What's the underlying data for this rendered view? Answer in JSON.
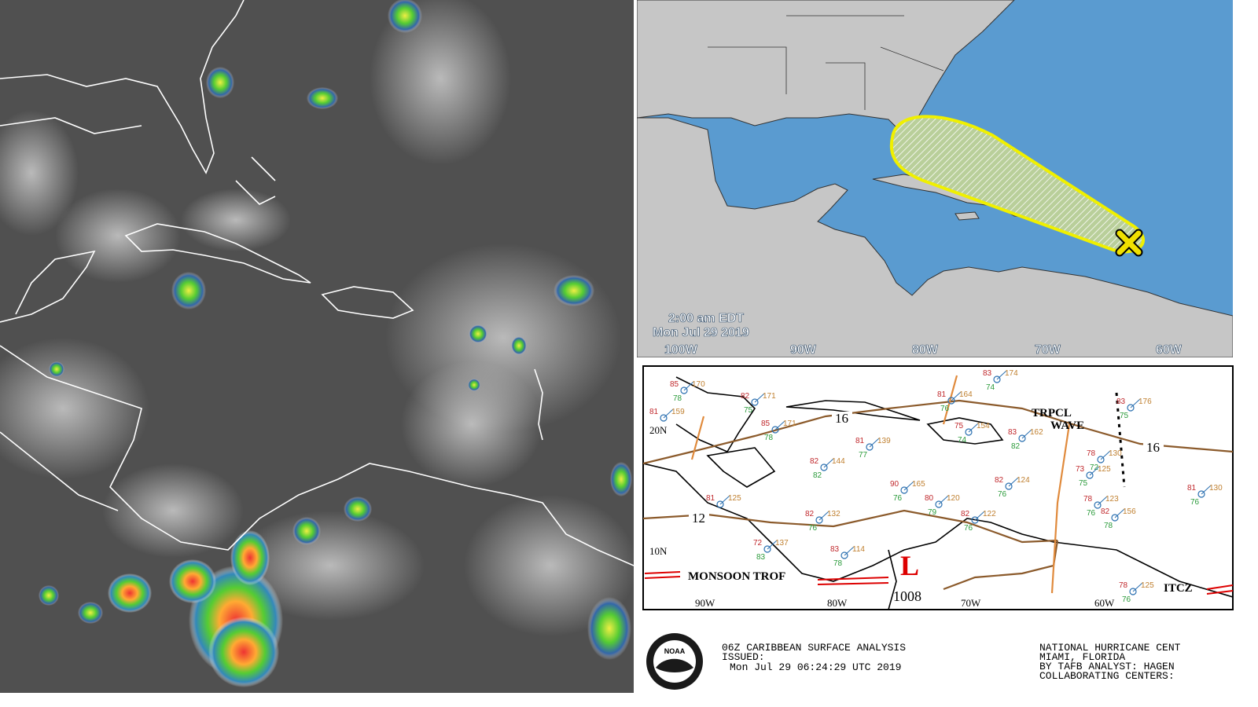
{
  "forecast_map": {
    "valid_time": "2:00 am EDT",
    "valid_date": "Mon Jul 29 2019",
    "longitude_labels": [
      "100W",
      "90W",
      "80W",
      "70W",
      "60W"
    ]
  },
  "surface_analysis": {
    "latitude_labels": [
      "20N",
      "10N"
    ],
    "longitude_labels": [
      "90W",
      "80W",
      "70W",
      "60W"
    ],
    "isobar_labels": [
      "16",
      "12",
      "16"
    ],
    "monsoon_trough": "MONSOON TROF",
    "tropical_wave": [
      "TRPCL",
      "WAVE"
    ],
    "itcz": "ITCZ",
    "low_pressure": {
      "symbol": "L",
      "pressure": "1008"
    },
    "stations": [
      {
        "temp": "85",
        "pressure": "170",
        "dewpoint": "78"
      },
      {
        "temp": "81",
        "pressure": "159"
      },
      {
        "temp": "82",
        "pressure": "171",
        "dewpoint": "75"
      },
      {
        "temp": "85",
        "pressure": "171",
        "dewpoint": "78"
      },
      {
        "temp": "82",
        "pressure": "144",
        "dewpoint": "82"
      },
      {
        "temp": "81",
        "pressure": "139",
        "dewpoint": "77"
      },
      {
        "temp": "81",
        "pressure": "164",
        "dewpoint": "76"
      },
      {
        "temp": "75",
        "pressure": "154",
        "dewpoint": "74"
      },
      {
        "temp": "83",
        "pressure": "162",
        "dewpoint": "82"
      },
      {
        "temp": "83",
        "pressure": "174",
        "dewpoint": "74"
      },
      {
        "temp": "83",
        "pressure": "176",
        "dewpoint": "75"
      },
      {
        "temp": "78",
        "pressure": "130",
        "dewpoint": "72"
      },
      {
        "temp": "73",
        "pressure": "125",
        "dewpoint": "75"
      },
      {
        "temp": "82",
        "pressure": "124",
        "dewpoint": "76"
      },
      {
        "temp": "90",
        "pressure": "165",
        "dewpoint": "76"
      },
      {
        "temp": "80",
        "pressure": "120",
        "dewpoint": "79"
      },
      {
        "temp": "82",
        "pressure": "122",
        "dewpoint": "76"
      },
      {
        "temp": "82",
        "pressure": "132",
        "dewpoint": "76"
      },
      {
        "temp": "78",
        "pressure": "123",
        "dewpoint": "76"
      },
      {
        "temp": "82",
        "pressure": "156",
        "dewpoint": "78"
      },
      {
        "temp": "81",
        "pressure": "130",
        "dewpoint": "76"
      },
      {
        "temp": "81",
        "pressure": "125"
      },
      {
        "temp": "72",
        "pressure": "137",
        "dewpoint": "83"
      },
      {
        "temp": "83",
        "pressure": "114",
        "dewpoint": "78"
      },
      {
        "temp": "78",
        "pressure": "125",
        "dewpoint": "76"
      }
    ]
  },
  "footer": {
    "logo": "NOAA",
    "title": "06Z CARIBBEAN SURFACE ANALYSIS",
    "issued_label": "ISSUED:",
    "issued": "Mon Jul 29 06:24:29 UTC 2019",
    "center": "NATIONAL HURRICANE CENT",
    "location": "MIAMI, FLORIDA",
    "analyst": "BY TAFB ANALYST: HAGEN",
    "collaborating": "COLLABORATING CENTERS:"
  }
}
